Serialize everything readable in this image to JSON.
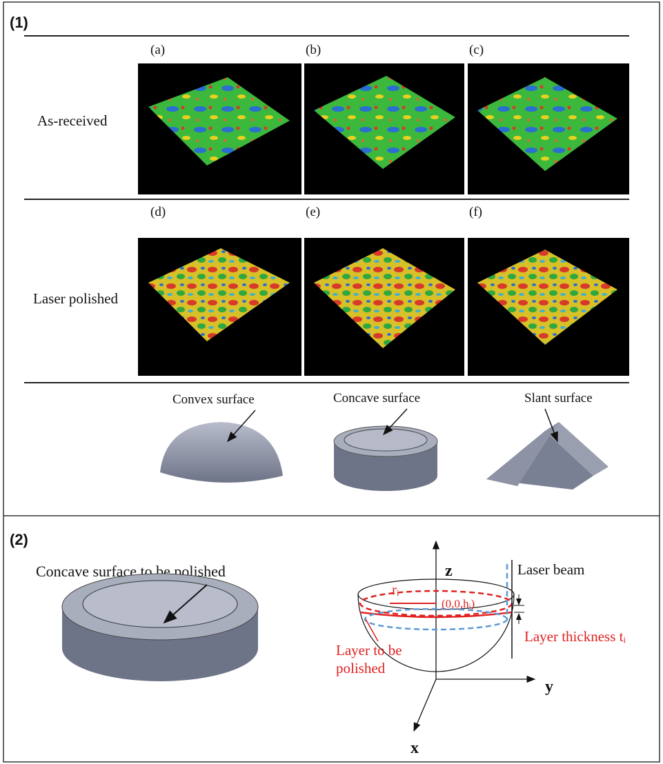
{
  "part1": {
    "label": "(1)",
    "panels": [
      "(a)",
      "(b)",
      "(c)",
      "(d)",
      "(e)",
      "(f)"
    ],
    "rows": [
      "As-received",
      "Laser polished"
    ],
    "shapes": [
      "Convex surface",
      "Concave surface",
      "Slant surface"
    ]
  },
  "part2": {
    "label": "(2)",
    "part_caption": "Concave surface to be polished",
    "axes": {
      "z": "z",
      "y": "y",
      "x": "x"
    },
    "laser": "Laser beam",
    "radius": "rᵢ",
    "center": "(0,0,hᵢ)",
    "layer": [
      "Layer to be",
      "polished"
    ],
    "thickness": "Layer thickness tᵢ"
  }
}
